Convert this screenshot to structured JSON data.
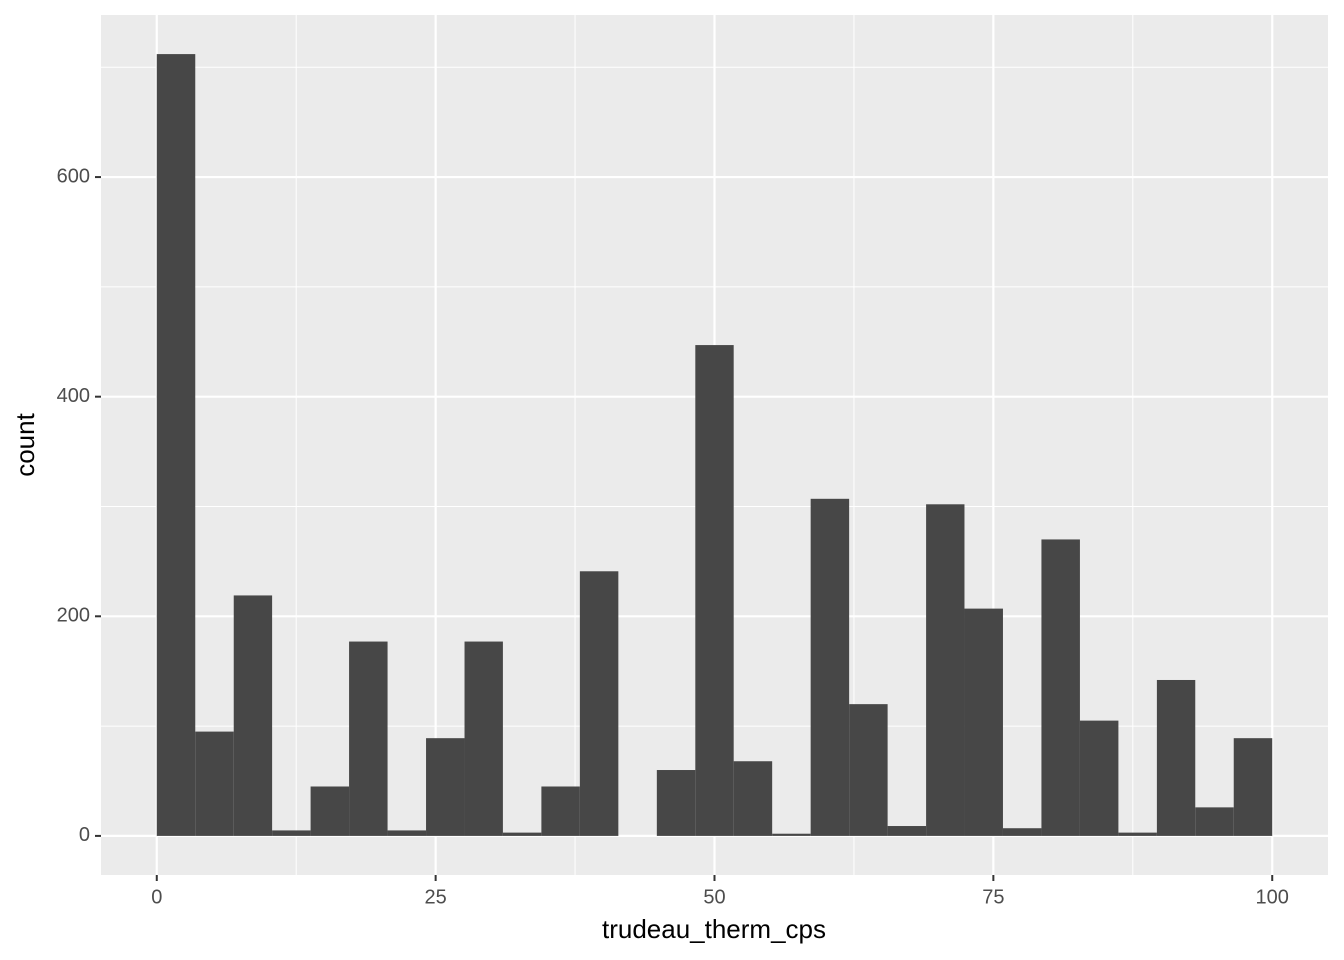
{
  "chart_data": {
    "type": "histogram",
    "x_label": "trudeau_therm_cps",
    "y_label": "count",
    "bins": [
      0,
      3.45,
      6.9,
      10.34,
      13.79,
      17.24,
      20.69,
      24.14,
      27.59,
      31.03,
      34.48,
      37.93,
      41.38,
      44.83,
      48.28,
      51.72,
      55.17,
      58.62,
      62.07,
      65.52,
      68.97,
      72.41,
      75.86,
      79.31,
      82.76,
      86.21,
      89.66,
      93.1,
      96.55,
      100
    ],
    "values": [
      712,
      95,
      219,
      5,
      45,
      177,
      5,
      89,
      177,
      3,
      45,
      241,
      0,
      60,
      447,
      68,
      2,
      307,
      120,
      9,
      302,
      207,
      7,
      270,
      105,
      3,
      142,
      26,
      89
    ],
    "color": "#474747",
    "xlim": [
      -5,
      105
    ],
    "xticks": [
      0,
      25,
      50,
      75,
      100
    ],
    "ylim": [
      -35.6,
      747.6
    ],
    "yticks": [
      0,
      200,
      400,
      600
    ],
    "grid": true
  }
}
